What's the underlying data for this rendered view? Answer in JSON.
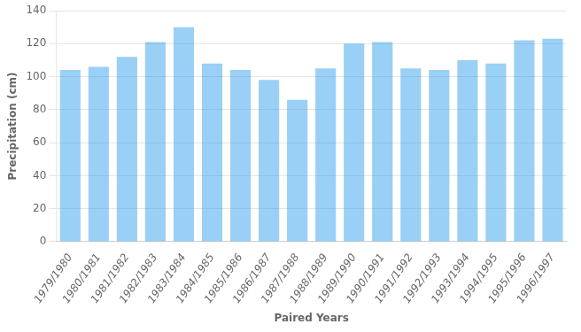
{
  "chart_data": {
    "type": "bar",
    "categories": [
      "1979/1980",
      "1980/1981",
      "1981/1982",
      "1982/1983",
      "1983/1984",
      "1984/1985",
      "1985/1986",
      "1986/1987",
      "1987/1988",
      "1988/1989",
      "1989/1990",
      "1990/1991",
      "1991/1992",
      "1992/1993",
      "1993/1994",
      "1994/1995",
      "1995/1996",
      "1996/1997"
    ],
    "values": [
      104,
      106,
      112,
      121,
      130,
      108,
      104,
      98,
      86,
      105,
      120,
      121,
      105,
      104,
      110,
      108,
      122,
      123
    ],
    "xlabel": "Paired Years",
    "ylabel": "Precipitation (cm)",
    "ylim": [
      0,
      140
    ],
    "yticks": [
      0,
      20,
      40,
      60,
      80,
      100,
      120,
      140
    ],
    "grid": true
  }
}
